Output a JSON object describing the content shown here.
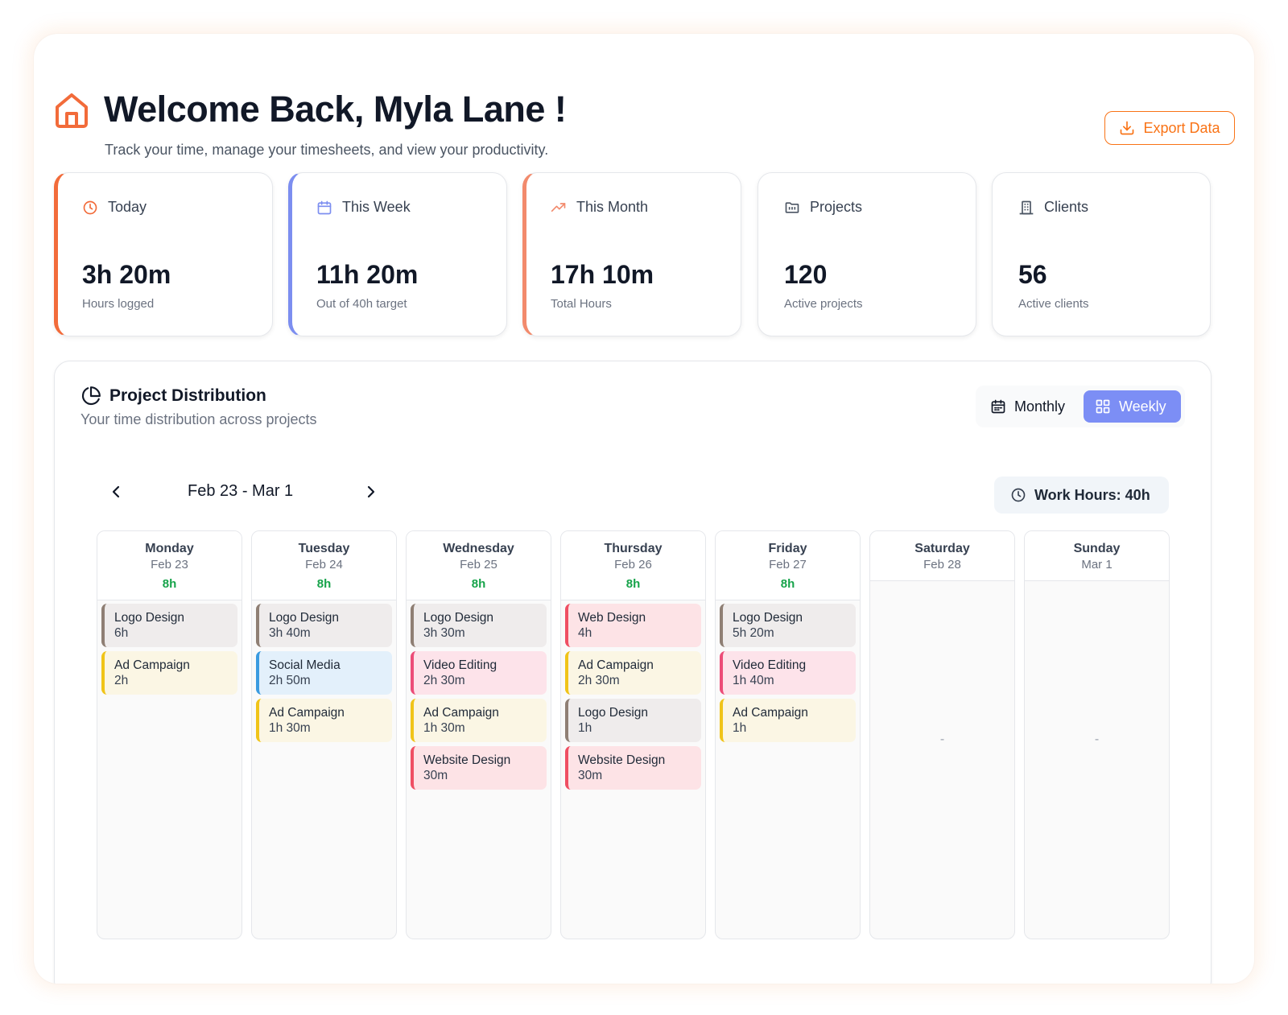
{
  "header": {
    "title": "Welcome Back, Myla Lane !",
    "subtitle": "Track your time, manage your timesheets, and view your productivity.",
    "home_icon": "home-icon",
    "export_label": "Export Data"
  },
  "stats": [
    {
      "label": "Today",
      "value": "3h 20m",
      "caption": "Hours logged",
      "icon": "clock-icon"
    },
    {
      "label": "This Week",
      "value": "11h 20m",
      "caption": "Out of 40h target",
      "icon": "calendar-icon"
    },
    {
      "label": "This Month",
      "value": "17h 10m",
      "caption": "Total Hours",
      "icon": "trending-up-icon"
    },
    {
      "label": "Projects",
      "value": "120",
      "caption": "Active projects",
      "icon": "folder-icon"
    },
    {
      "label": "Clients",
      "value": "56",
      "caption": "Active clients",
      "icon": "building-icon"
    }
  ],
  "colors": {
    "accent": "#f97316",
    "weekly_active": "#7c8ef5",
    "total_hours_green": "#16a34a"
  },
  "distribution": {
    "title": "Project Distribution",
    "subtitle": "Your time distribution across projects",
    "toggle": {
      "monthly": "Monthly",
      "weekly": "Weekly",
      "selected": "Weekly"
    },
    "week_range": "Feb 23 - Mar 1",
    "work_hours": "Work Hours: 40h",
    "days": [
      {
        "name": "Monday",
        "date": "Feb 23",
        "total": "8h",
        "entries": [
          {
            "project": "Logo Design",
            "duration": "6h"
          },
          {
            "project": "Ad Campaign",
            "duration": "2h"
          }
        ]
      },
      {
        "name": "Tuesday",
        "date": "Feb 24",
        "total": "8h",
        "entries": [
          {
            "project": "Logo Design",
            "duration": "3h 40m"
          },
          {
            "project": "Social Media",
            "duration": "2h 50m"
          },
          {
            "project": "Ad Campaign",
            "duration": "1h 30m"
          }
        ]
      },
      {
        "name": "Wednesday",
        "date": "Feb 25",
        "total": "8h",
        "entries": [
          {
            "project": "Logo Design",
            "duration": "3h 30m"
          },
          {
            "project": "Video Editing",
            "duration": "2h 30m"
          },
          {
            "project": "Ad Campaign",
            "duration": "1h 30m"
          },
          {
            "project": "Website Design",
            "duration": "30m"
          }
        ]
      },
      {
        "name": "Thursday",
        "date": "Feb 26",
        "total": "8h",
        "entries": [
          {
            "project": "Web Design",
            "duration": "4h"
          },
          {
            "project": "Ad Campaign",
            "duration": "2h 30m"
          },
          {
            "project": "Logo Design",
            "duration": "1h"
          },
          {
            "project": "Website Design",
            "duration": "30m"
          }
        ]
      },
      {
        "name": "Friday",
        "date": "Feb 27",
        "total": "8h",
        "entries": [
          {
            "project": "Logo Design",
            "duration": "5h 20m"
          },
          {
            "project": "Video Editing",
            "duration": "1h 40m"
          },
          {
            "project": "Ad Campaign",
            "duration": "1h"
          }
        ]
      },
      {
        "name": "Saturday",
        "date": "Feb 28",
        "empty": "-"
      },
      {
        "name": "Sunday",
        "date": "Mar 1",
        "empty": "-"
      }
    ]
  }
}
